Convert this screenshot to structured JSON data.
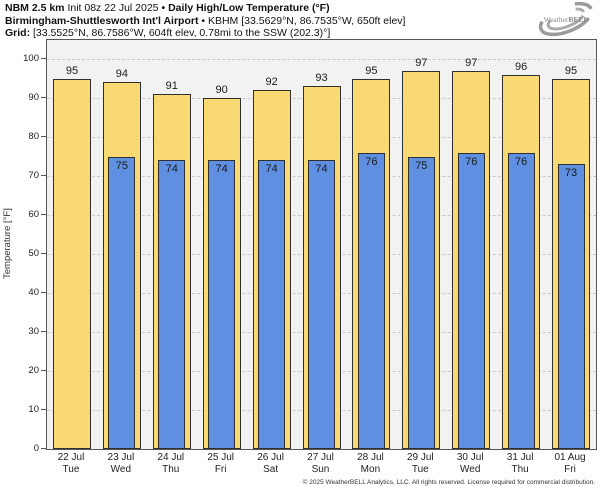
{
  "header": {
    "line1": {
      "model": "NBM 2.5 km",
      "init": "Init 08z 22 Jul 2025",
      "sep": "•",
      "product": "Daily High/Low Temperature (°F)"
    },
    "line2": {
      "station": "Birmingham-Shuttlesworth Int'l Airport",
      "sep": "•",
      "details": "KBHM [33.5629°N, 86.7535°W, 650ft elev]"
    },
    "line3": {
      "label": "Grid:",
      "details": "[33.5525°N, 86.7586°W, 604ft elev, 0.78mi to the SSW (202.3)°]"
    }
  },
  "logo": {
    "brand_a": "Weather",
    "brand_b": "BELL"
  },
  "chart_data": {
    "type": "bar",
    "title": "Daily High/Low Temperature (°F)",
    "ylabel": "Temperature [°F]",
    "ylim": [
      0,
      100
    ],
    "ytick_step": 10,
    "grid": true,
    "legend_position": "none",
    "categories": [
      {
        "date": "22 Jul",
        "day": "Tue"
      },
      {
        "date": "23 Jul",
        "day": "Wed"
      },
      {
        "date": "24 Jul",
        "day": "Thu"
      },
      {
        "date": "25 Jul",
        "day": "Fri"
      },
      {
        "date": "26 Jul",
        "day": "Sat"
      },
      {
        "date": "27 Jul",
        "day": "Sun"
      },
      {
        "date": "28 Jul",
        "day": "Mon"
      },
      {
        "date": "29 Jul",
        "day": "Tue"
      },
      {
        "date": "30 Jul",
        "day": "Wed"
      },
      {
        "date": "31 Jul",
        "day": "Thu"
      },
      {
        "date": "01 Aug",
        "day": "Fri"
      }
    ],
    "series": [
      {
        "name": "Daily High",
        "values": [
          95,
          94,
          91,
          90,
          92,
          93,
          95,
          97,
          97,
          96,
          95
        ]
      },
      {
        "name": "Daily Low",
        "values": [
          null,
          75,
          74,
          74,
          74,
          74,
          76,
          75,
          76,
          76,
          73
        ]
      }
    ]
  },
  "colors": {
    "high_fill": "#F9D973",
    "low_fill": "#5E8FE0",
    "bar_border": "#303030",
    "plot_bg": "#F2F2F2",
    "plot_border": "#555555",
    "grid": "#C9C9C9"
  },
  "footer": {
    "copyright": "© 2025 WeatherBELL Analytics, LLC. All rights reserved. License required for commercial distribution."
  }
}
